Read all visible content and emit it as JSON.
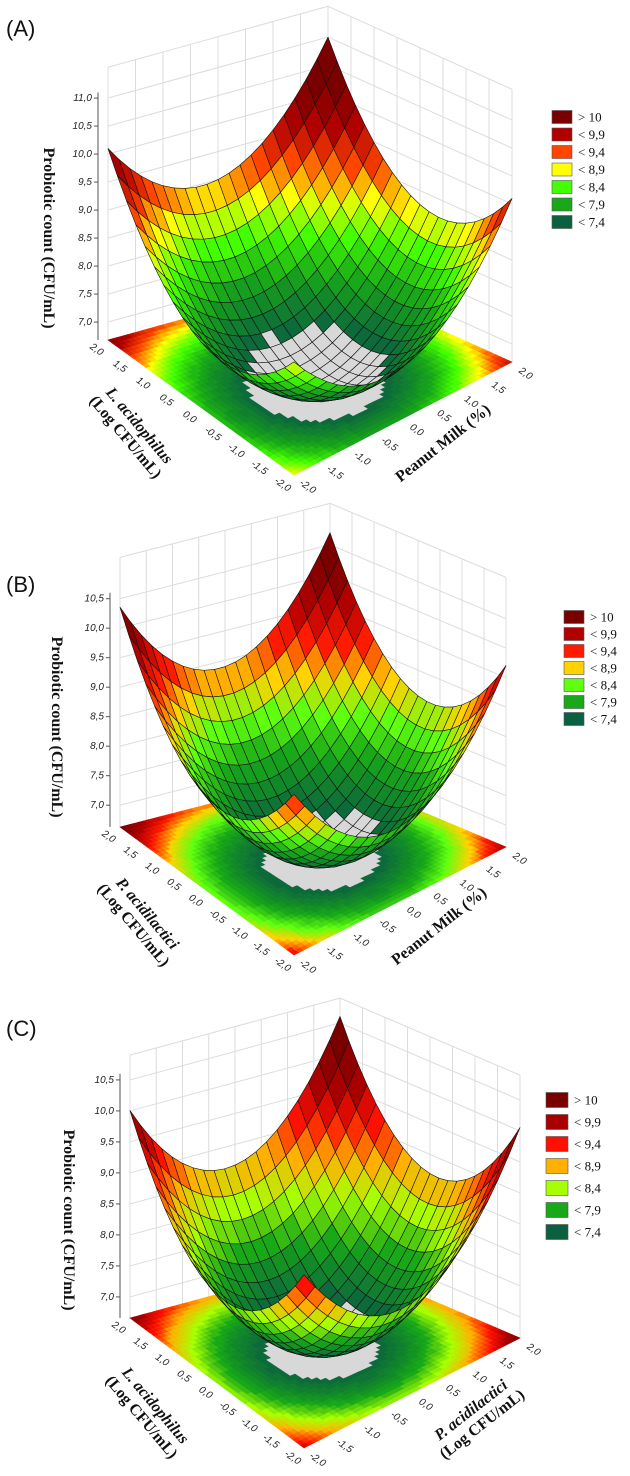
{
  "chart_data": [
    {
      "type": "surface3d",
      "panel_label": "(A)",
      "zlabel": "Probiotic count (CFU/mL)",
      "xlabel_line1": "Peanut Milk (%)",
      "xlabel_line2": "",
      "ylabel_line1": "L. acidophilus",
      "ylabel_line2": "(Log CFU/mL)",
      "xlim": [
        -2,
        2
      ],
      "ylim": [
        -2,
        2
      ],
      "zlim": [
        6.7,
        11.0
      ],
      "zticks": [
        "7,0",
        "7,5",
        "8,0",
        "8,5",
        "9,0",
        "9,5",
        "10,0",
        "10,5",
        "11,0"
      ],
      "xticks": [
        "-2,0",
        "-1,5",
        "-1,0",
        "-0,5",
        "0,0",
        "0,5",
        "1,0",
        "1,5",
        "2,0"
      ],
      "yticks": [
        "-2,0",
        "-1,5",
        "-1,0",
        "-0,5",
        "0,0",
        "0,5",
        "1,0",
        "1,5",
        "2,0"
      ],
      "model": {
        "c0": 6.75,
        "x": 0.225,
        "y": 0.35,
        "x2": 0.3875,
        "y2": 0.3875
      },
      "below_range_color": "#d8d8d8",
      "legend": [
        {
          "label": "> 10",
          "color": "#7a0000"
        },
        {
          "label": "< 9,9",
          "color": "#b00000"
        },
        {
          "label": "< 9,4",
          "color": "#ff4500"
        },
        {
          "label": "< 8,9",
          "color": "#ffff00"
        },
        {
          "label": "< 8,4",
          "color": "#44ff00"
        },
        {
          "label": "< 7,9",
          "color": "#18a818"
        },
        {
          "label": "< 7,4",
          "color": "#0b6040"
        }
      ]
    },
    {
      "type": "surface3d",
      "panel_label": "(B)",
      "zlabel": "Probiotic count (CFU/mL)",
      "xlabel_line1": "Peanut Milk (%)",
      "xlabel_line2": "",
      "ylabel_line1": "P. acidilactici",
      "ylabel_line2": "(Log CFU/mL)",
      "xlim": [
        -2,
        2
      ],
      "ylim": [
        -2,
        2
      ],
      "zlim": [
        6.7,
        10.5
      ],
      "zticks": [
        "7,0",
        "7,5",
        "8,0",
        "8,5",
        "9,0",
        "9,5",
        "10,0",
        "10,5"
      ],
      "xticks": [
        "-2,0",
        "-1,5",
        "-1,0",
        "-0,5",
        "0,0",
        "0,5",
        "1,0",
        "1,5",
        "2,0"
      ],
      "yticks": [
        "-2,0",
        "-1,5",
        "-1,0",
        "-0,5",
        "0,0",
        "0,5",
        "1,0",
        "1,5",
        "2,0"
      ],
      "model": {
        "c0": 6.75,
        "x": 0.0875,
        "y": 0.25,
        "x2": 0.41,
        "y2": 0.41
      },
      "below_range_color": "#d8d8d8",
      "legend": [
        {
          "label": "> 10",
          "color": "#7a0000"
        },
        {
          "label": "< 9,9",
          "color": "#b00000"
        },
        {
          "label": "< 9,4",
          "color": "#ff1a00"
        },
        {
          "label": "< 8,9",
          "color": "#ffd200"
        },
        {
          "label": "< 8,4",
          "color": "#60ff10"
        },
        {
          "label": "< 7,9",
          "color": "#18a818"
        },
        {
          "label": "< 7,4",
          "color": "#0b6040"
        }
      ]
    },
    {
      "type": "surface3d",
      "panel_label": "(C)",
      "zlabel": "Probiotic count (CFU/mL)",
      "xlabel_line1": "P. acidilactici",
      "xlabel_line2": "(Log CFU/mL)",
      "ylabel_line1": "L. acidophilus",
      "ylabel_line2": "(Log CFU/mL)",
      "xlim": [
        -2,
        2
      ],
      "ylim": [
        -2,
        2
      ],
      "zlim": [
        6.7,
        10.5
      ],
      "zticks": [
        "7,0",
        "7,5",
        "8,0",
        "8,5",
        "9,0",
        "9,5",
        "10,0",
        "10,5"
      ],
      "xticks": [
        "-2,0",
        "-1,5",
        "-1,0",
        "-0,5",
        "0,0",
        "0,5",
        "1,0",
        "1,5",
        "2,0"
      ],
      "yticks": [
        "-2,0",
        "-1,5",
        "-1,0",
        "-0,5",
        "0,0",
        "0,5",
        "1,0",
        "1,5",
        "2,0"
      ],
      "model": {
        "c0": 6.75,
        "x": 0.15,
        "y": 0.1375,
        "x2": 0.41,
        "y2": 0.41
      },
      "below_range_color": "#d8d8d8",
      "legend": [
        {
          "label": "> 10",
          "color": "#7a0000"
        },
        {
          "label": "< 9,9",
          "color": "#a80000"
        },
        {
          "label": "< 9,4",
          "color": "#ff1000"
        },
        {
          "label": "< 8,9",
          "color": "#ffb000"
        },
        {
          "label": "< 8,4",
          "color": "#a8ff00"
        },
        {
          "label": "< 7,9",
          "color": "#18a818"
        },
        {
          "label": "< 7,4",
          "color": "#0b6040"
        }
      ]
    }
  ]
}
